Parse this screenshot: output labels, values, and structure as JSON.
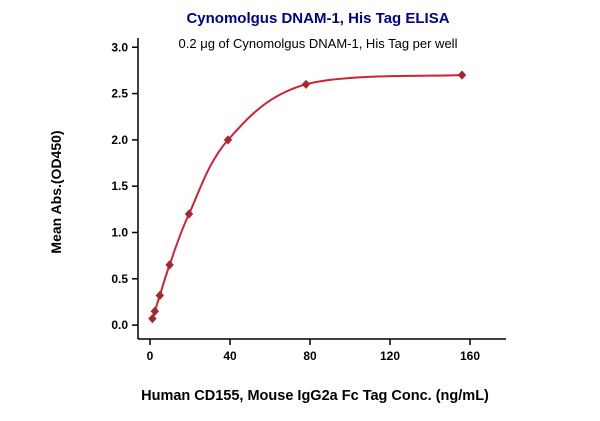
{
  "colors": {
    "title": "#00008b",
    "axis": "#000000",
    "background": "#ffffff"
  },
  "chart_data": {
    "type": "scatter",
    "title": "Cynomolgus DNAM-1, His Tag ELISA",
    "subtitle": "0.2 μg of Cynomolgus DNAM-1, His Tag per well",
    "xlabel": "Human CD155, Mouse IgG2a Fc Tag Conc. (ng/mL)",
    "ylabel": "Mean Abs.(OD450)",
    "x": [
      1.2,
      2.4,
      4.9,
      9.8,
      19.5,
      39,
      78,
      156
    ],
    "y": [
      0.07,
      0.15,
      0.32,
      0.65,
      1.2,
      2.0,
      2.6,
      2.7
    ],
    "xticks": [
      0,
      40,
      80,
      120,
      160
    ],
    "yticks": [
      0.0,
      0.5,
      1.0,
      1.5,
      2.0,
      2.5,
      3.0
    ],
    "xlim": [
      -6,
      178
    ],
    "ylim": [
      -0.15,
      3.1
    ],
    "grid": false,
    "legend": null,
    "marker": "diamond",
    "marker_color": "#a3282e",
    "line_color": "#cf2233",
    "fit": "4PL dose-response curve"
  }
}
